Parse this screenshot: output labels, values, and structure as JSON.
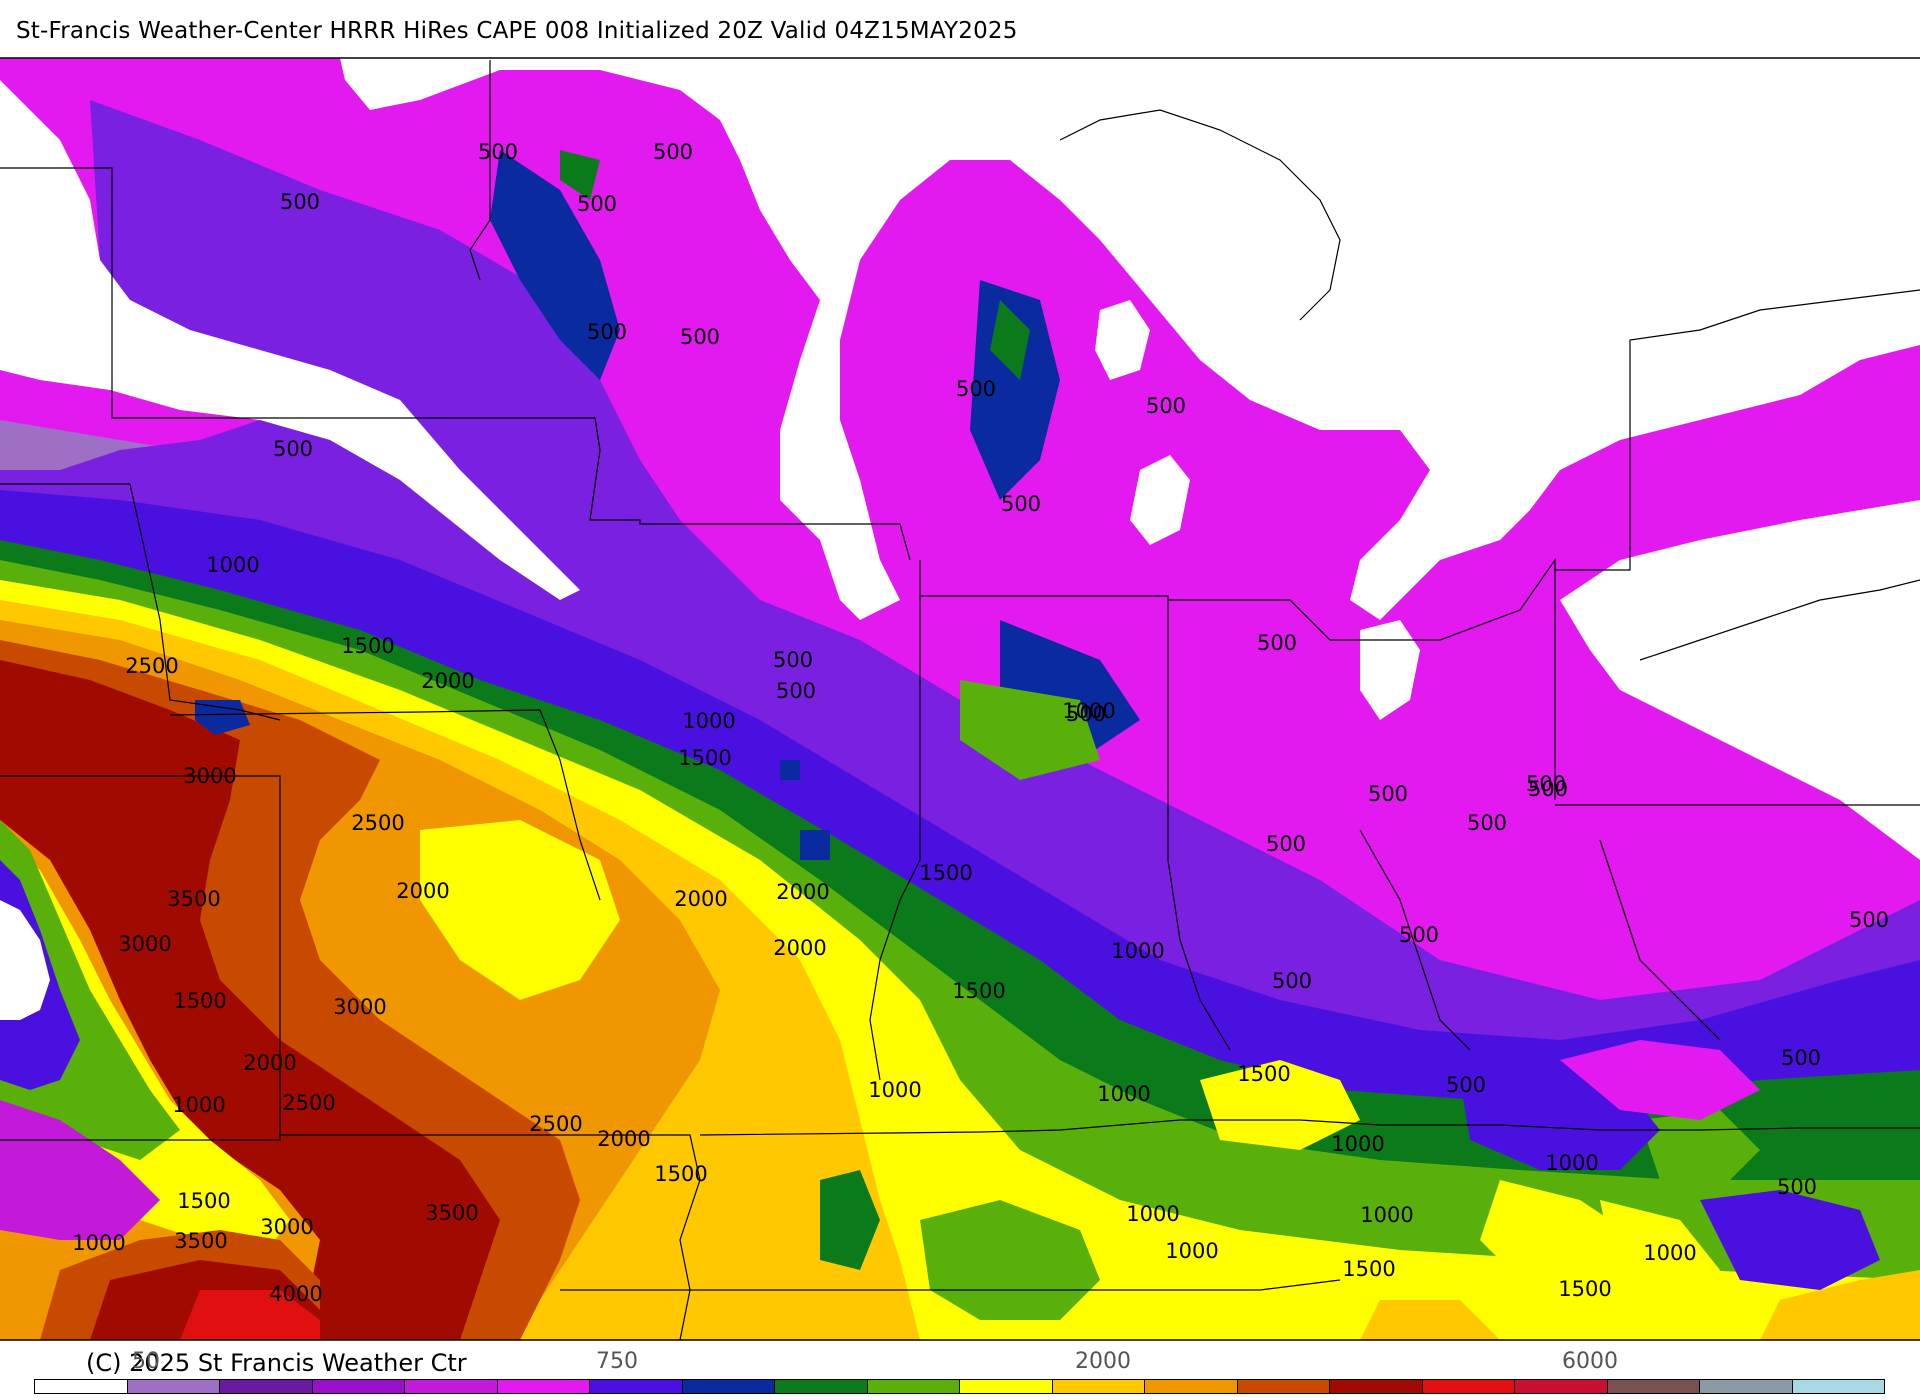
{
  "header": {
    "title": "St-Francis Weather-Center HRRR HiRes CAPE  008 Initialized  20Z Valid 04Z15MAY2025"
  },
  "footer": {
    "copyright": "(C) 2025 St Francis Weather Ctr"
  },
  "scale": {
    "tick_labels": [
      "50",
      "750",
      "2000",
      "6000"
    ],
    "colors": [
      "#ffffff",
      "#9e6fc4",
      "#6a1aa0",
      "#9a10c8",
      "#c21ad8",
      "#e21af0",
      "#4a10e0",
      "#0a2aa0",
      "#0a7a1a",
      "#5ab00a",
      "#ffff00",
      "#ffc800",
      "#f09600",
      "#c84a00",
      "#a00a00",
      "#e01010",
      "#c81030",
      "#7a5050",
      "#8a9aa6",
      "#a8d8e4"
    ]
  },
  "map": {
    "palette": {
      "lt_purple": "#9e6fc4",
      "magenta": "#e21af0",
      "purple": "#c21ad8",
      "violet": "#7a20e0",
      "blue": "#4a10e0",
      "navy": "#0a2aa0",
      "dk_green": "#0a7a1a",
      "green": "#5ab00a",
      "yellow": "#ffff00",
      "gold": "#ffc800",
      "orange": "#f09600",
      "rust": "#c84a00",
      "dk_red": "#a00a00",
      "red": "#e01010"
    },
    "contour_labels": [
      {
        "text": "500"
      },
      {
        "text": "500"
      },
      {
        "text": "500"
      },
      {
        "text": "500"
      },
      {
        "text": "500"
      },
      {
        "text": "500"
      },
      {
        "text": "500"
      },
      {
        "text": "500"
      },
      {
        "text": "500"
      },
      {
        "text": "500"
      },
      {
        "text": "500"
      },
      {
        "text": "500"
      },
      {
        "text": "500"
      },
      {
        "text": "500"
      },
      {
        "text": "500"
      },
      {
        "text": "500"
      },
      {
        "text": "500"
      },
      {
        "text": "500"
      },
      {
        "text": "500"
      },
      {
        "text": "500"
      },
      {
        "text": "500"
      },
      {
        "text": "500"
      },
      {
        "text": "500"
      },
      {
        "text": "500"
      },
      {
        "text": "500"
      },
      {
        "text": "1000"
      },
      {
        "text": "1000"
      },
      {
        "text": "1000"
      },
      {
        "text": "1000"
      },
      {
        "text": "1000"
      },
      {
        "text": "1000"
      },
      {
        "text": "1000"
      },
      {
        "text": "1000"
      },
      {
        "text": "1000"
      },
      {
        "text": "1000"
      },
      {
        "text": "1000"
      },
      {
        "text": "1000"
      },
      {
        "text": "1000"
      },
      {
        "text": "1000"
      },
      {
        "text": "1500"
      },
      {
        "text": "1500"
      },
      {
        "text": "1500"
      },
      {
        "text": "1500"
      },
      {
        "text": "1500"
      },
      {
        "text": "1500"
      },
      {
        "text": "1500"
      },
      {
        "text": "1500"
      },
      {
        "text": "1500"
      },
      {
        "text": "1500"
      },
      {
        "text": "2000"
      },
      {
        "text": "2000"
      },
      {
        "text": "2000"
      },
      {
        "text": "2000"
      },
      {
        "text": "2000"
      },
      {
        "text": "2000"
      },
      {
        "text": "2000"
      },
      {
        "text": "2500"
      },
      {
        "text": "2500"
      },
      {
        "text": "2500"
      },
      {
        "text": "2500"
      },
      {
        "text": "3000"
      },
      {
        "text": "3000"
      },
      {
        "text": "3000"
      },
      {
        "text": "3000"
      },
      {
        "text": "3500"
      },
      {
        "text": "3500"
      },
      {
        "text": "3500"
      },
      {
        "text": "4000"
      }
    ]
  }
}
